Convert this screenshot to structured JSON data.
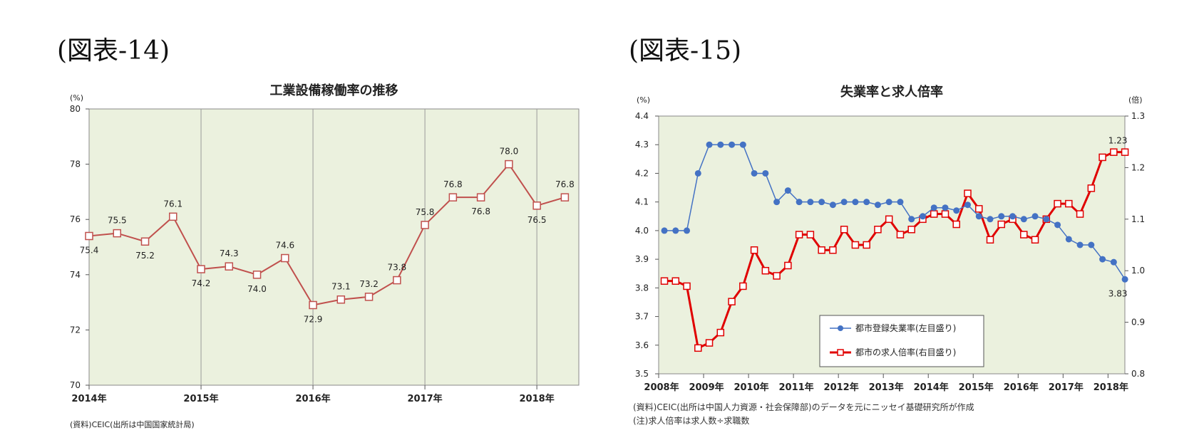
{
  "figure_labels": [
    "(図表-14)",
    "(図表-15)"
  ],
  "chart_data": [
    {
      "type": "line",
      "title": "工業設備稼働率の推移",
      "y_unit": "(%)",
      "ylim": [
        70,
        80
      ],
      "y_ticks": [
        70,
        72,
        74,
        76,
        78,
        80
      ],
      "x_tick_labels": [
        "2014年",
        "2015年",
        "2016年",
        "2017年",
        "2018年"
      ],
      "x_ticks": [
        "2014-Q1",
        "2015-Q1",
        "2016-Q1",
        "2017-Q1",
        "2018-Q1"
      ],
      "x": [
        "2014-Q1",
        "2014-Q2",
        "2014-Q3",
        "2014-Q4",
        "2015-Q1",
        "2015-Q2",
        "2015-Q3",
        "2015-Q4",
        "2016-Q1",
        "2016-Q2",
        "2016-Q3",
        "2016-Q4",
        "2017-Q1",
        "2017-Q2",
        "2017-Q3",
        "2017-Q4",
        "2018-Q1",
        "2018-Q2"
      ],
      "values": [
        75.4,
        75.5,
        75.2,
        76.1,
        74.2,
        74.3,
        74.0,
        74.6,
        72.9,
        73.1,
        73.2,
        73.8,
        75.8,
        76.8,
        76.8,
        78.0,
        76.5,
        76.8
      ],
      "data_labels": [
        "75.4",
        "75.5",
        "75.2",
        "76.1",
        "74.2",
        "74.3",
        "74.0",
        "74.6",
        "72.9",
        "73.1",
        "73.2",
        "73.8",
        "75.8",
        "76.8",
        "76.8",
        "78.0",
        "76.5",
        "76.8"
      ],
      "grid": "vertical lines at year boundaries",
      "colors": {
        "line": "#c0504d",
        "plot_bg": "#ebf1de"
      },
      "source": "(資料)CEIC(出所は中国国家統計局)"
    },
    {
      "type": "line",
      "title": "失業率と求人倍率",
      "y_unit_left": "(%)",
      "y_unit_right": "(倍)",
      "ylim_left": [
        3.5,
        4.4
      ],
      "ylim_right": [
        0.8,
        1.3
      ],
      "y_ticks_left": [
        "3.5",
        "3.6",
        "3.7",
        "3.8",
        "3.9",
        "4.0",
        "4.1",
        "4.2",
        "4.3",
        "4.4"
      ],
      "y_ticks_right": [
        "0.8",
        "0.9",
        "1.0",
        "1.1",
        "1.2",
        "1.3"
      ],
      "x_tick_labels": [
        "2008年",
        "2009年",
        "2010年",
        "2011年",
        "2012年",
        "2013年",
        "2014年",
        "2015年",
        "2016年",
        "2017年",
        "2018年"
      ],
      "x_ticks": [
        "2008-Q1",
        "2009-Q1",
        "2010-Q1",
        "2011-Q1",
        "2012-Q1",
        "2013-Q1",
        "2014-Q1",
        "2015-Q1",
        "2016-Q1",
        "2017-Q1",
        "2018-Q1"
      ],
      "x": [
        "2008-Q1",
        "2008-Q2",
        "2008-Q3",
        "2008-Q4",
        "2009-Q1",
        "2009-Q2",
        "2009-Q3",
        "2009-Q4",
        "2010-Q1",
        "2010-Q2",
        "2010-Q3",
        "2010-Q4",
        "2011-Q1",
        "2011-Q2",
        "2011-Q3",
        "2011-Q4",
        "2012-Q1",
        "2012-Q2",
        "2012-Q3",
        "2012-Q4",
        "2013-Q1",
        "2013-Q2",
        "2013-Q3",
        "2013-Q4",
        "2014-Q1",
        "2014-Q2",
        "2014-Q3",
        "2014-Q4",
        "2015-Q1",
        "2015-Q2",
        "2015-Q3",
        "2015-Q4",
        "2016-Q1",
        "2016-Q2",
        "2016-Q3",
        "2016-Q4",
        "2017-Q1",
        "2017-Q2",
        "2017-Q3",
        "2017-Q4",
        "2018-Q1",
        "2018-Q2"
      ],
      "series": [
        {
          "name": "都市登録失業率(左目盛り)",
          "axis": "left",
          "color": "#4472c4",
          "marker": "circle",
          "values": [
            4.0,
            4.0,
            4.0,
            4.2,
            4.3,
            4.3,
            4.3,
            4.3,
            4.2,
            4.2,
            4.1,
            4.14,
            4.1,
            4.1,
            4.1,
            4.09,
            4.1,
            4.1,
            4.1,
            4.09,
            4.1,
            4.1,
            4.04,
            4.05,
            4.08,
            4.08,
            4.07,
            4.09,
            4.05,
            4.04,
            4.05,
            4.05,
            4.04,
            4.05,
            4.04,
            4.02,
            3.97,
            3.95,
            3.95,
            3.9,
            3.89,
            3.83
          ]
        },
        {
          "name": "都市の求人倍率(右目盛り)",
          "axis": "right",
          "color": "#e00000",
          "marker": "square",
          "values": [
            0.98,
            0.98,
            0.97,
            0.85,
            0.86,
            0.88,
            0.94,
            0.97,
            1.04,
            1.0,
            0.99,
            1.01,
            1.07,
            1.07,
            1.04,
            1.04,
            1.08,
            1.05,
            1.05,
            1.08,
            1.1,
            1.07,
            1.08,
            1.1,
            1.11,
            1.11,
            1.09,
            1.15,
            1.12,
            1.06,
            1.09,
            1.1,
            1.07,
            1.06,
            1.1,
            1.13,
            1.13,
            1.11,
            1.16,
            1.22,
            1.23,
            1.23
          ]
        }
      ],
      "annotations": [
        "1.23",
        "3.83"
      ],
      "legend_position": "bottom-center inside plot",
      "colors": {
        "plot_bg": "#ebf1de"
      },
      "source": "(資料)CEIC(出所は中国人力資源・社会保障部)のデータを元にニッセイ基礎研究所が作成",
      "note": "(注)求人倍率は求人数÷求職数"
    }
  ]
}
